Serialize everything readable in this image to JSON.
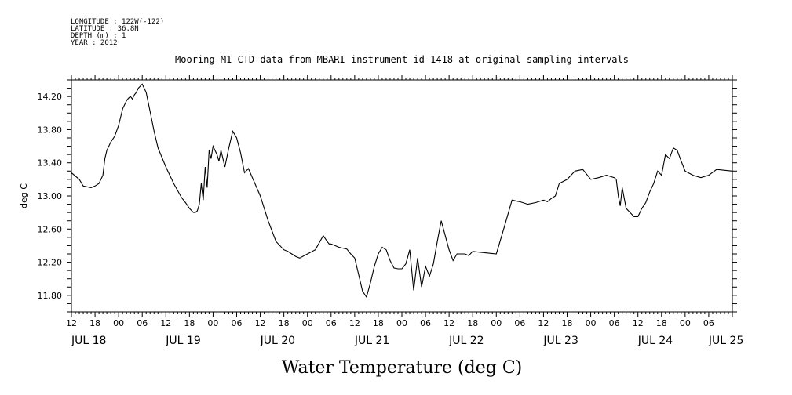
{
  "header": {
    "meta_lines": [
      "LONGITUDE : 122W(-122)",
      "LATITUDE : 36.8N",
      "DEPTH (m) : 1",
      "YEAR : 2012"
    ]
  },
  "chart_data": {
    "type": "line",
    "title": "Mooring M1 CTD data from MBARI instrument id 1418 at original sampling intervals",
    "xlabel": "Water Temperature (deg C)",
    "ylabel": "deg C",
    "ylim": [
      11.6,
      14.4
    ],
    "y_ticks": [
      "11.80",
      "12.20",
      "12.60",
      "13.00",
      "13.40",
      "13.80",
      "14.20"
    ],
    "x_range_hours": [
      0,
      168
    ],
    "x_hour_ticks": [
      "12",
      "18",
      "00",
      "06",
      "12",
      "18",
      "00",
      "06",
      "12",
      "18",
      "00",
      "06",
      "12",
      "18",
      "00",
      "06",
      "12",
      "18",
      "00",
      "06",
      "12",
      "18",
      "00",
      "06",
      "12",
      "18",
      "00",
      "06"
    ],
    "x_day_labels": [
      {
        "label": "JUL 18",
        "hour": 0
      },
      {
        "label": "JUL 19",
        "hour": 24
      },
      {
        "label": "JUL 20",
        "hour": 48
      },
      {
        "label": "JUL 21",
        "hour": 72
      },
      {
        "label": "JUL 22",
        "hour": 96
      },
      {
        "label": "JUL 23",
        "hour": 120
      },
      {
        "label": "JUL 24",
        "hour": 144
      },
      {
        "label": "JUL 25",
        "hour": 162
      }
    ],
    "series": [
      {
        "x": [
          0,
          2,
          3,
          5,
          6,
          7,
          8,
          8.5,
          9,
          10,
          11,
          12,
          13,
          14,
          14.5,
          15,
          15.5,
          16,
          16.5,
          17,
          18,
          19,
          20,
          21,
          22,
          24,
          26,
          28,
          29,
          30,
          31,
          31.5,
          32,
          32.5,
          33,
          33.5,
          34,
          34.5,
          35,
          35.5,
          36,
          37,
          37.5,
          38,
          39,
          40,
          41,
          42,
          43,
          44,
          45,
          46,
          48,
          50,
          52,
          54,
          55,
          56,
          57,
          58,
          60,
          62,
          64,
          65,
          65.5,
          66,
          67,
          68,
          69,
          70,
          71,
          72,
          73,
          74,
          75,
          76,
          77,
          78,
          79,
          80,
          81,
          82,
          83,
          84,
          85,
          86,
          87,
          88,
          89,
          90,
          91,
          92,
          93,
          94,
          96,
          97,
          98,
          99,
          100,
          101,
          102,
          104,
          108,
          110,
          112,
          114,
          116,
          118,
          120,
          121,
          122,
          123,
          124,
          126,
          128,
          130,
          132,
          134,
          136,
          138,
          138.5,
          139,
          139.5,
          140,
          141,
          142,
          143,
          144,
          145,
          146,
          147,
          148,
          149,
          150,
          151,
          152,
          153,
          154,
          155,
          156,
          158,
          160,
          162,
          164,
          168
        ],
        "y": [
          13.28,
          13.2,
          13.12,
          13.1,
          13.12,
          13.15,
          13.25,
          13.45,
          13.55,
          13.65,
          13.72,
          13.85,
          14.05,
          14.15,
          14.18,
          14.2,
          14.17,
          14.22,
          14.25,
          14.3,
          14.35,
          14.25,
          14.02,
          13.78,
          13.58,
          13.35,
          13.15,
          12.98,
          12.92,
          12.85,
          12.8,
          12.8,
          12.82,
          12.9,
          13.15,
          12.95,
          13.35,
          13.1,
          13.55,
          13.45,
          13.6,
          13.5,
          13.42,
          13.55,
          13.35,
          13.58,
          13.78,
          13.7,
          13.52,
          13.28,
          13.33,
          13.22,
          13.0,
          12.7,
          12.45,
          12.35,
          12.33,
          12.3,
          12.27,
          12.25,
          12.3,
          12.35,
          12.52,
          12.45,
          12.42,
          12.42,
          12.4,
          12.38,
          12.37,
          12.36,
          12.3,
          12.25,
          12.05,
          11.85,
          11.78,
          11.95,
          12.15,
          12.3,
          12.38,
          12.35,
          12.22,
          12.13,
          12.12,
          12.12,
          12.18,
          12.35,
          11.86,
          12.25,
          11.9,
          12.15,
          12.03,
          12.18,
          12.45,
          12.7,
          12.35,
          12.22,
          12.3,
          12.3,
          12.3,
          12.28,
          12.33,
          12.32,
          12.3,
          12.62,
          12.95,
          12.93,
          12.9,
          12.92,
          12.95,
          12.93,
          12.97,
          13.0,
          13.15,
          13.2,
          13.3,
          13.32,
          13.2,
          13.22,
          13.25,
          13.22,
          13.2,
          13.0,
          12.88,
          13.1,
          12.85,
          12.8,
          12.75,
          12.75,
          12.85,
          12.92,
          13.05,
          13.15,
          13.3,
          13.25,
          13.5,
          13.45,
          13.58,
          13.55,
          13.42,
          13.3,
          13.25,
          13.22,
          13.25,
          13.32,
          13.3
        ]
      }
    ]
  }
}
